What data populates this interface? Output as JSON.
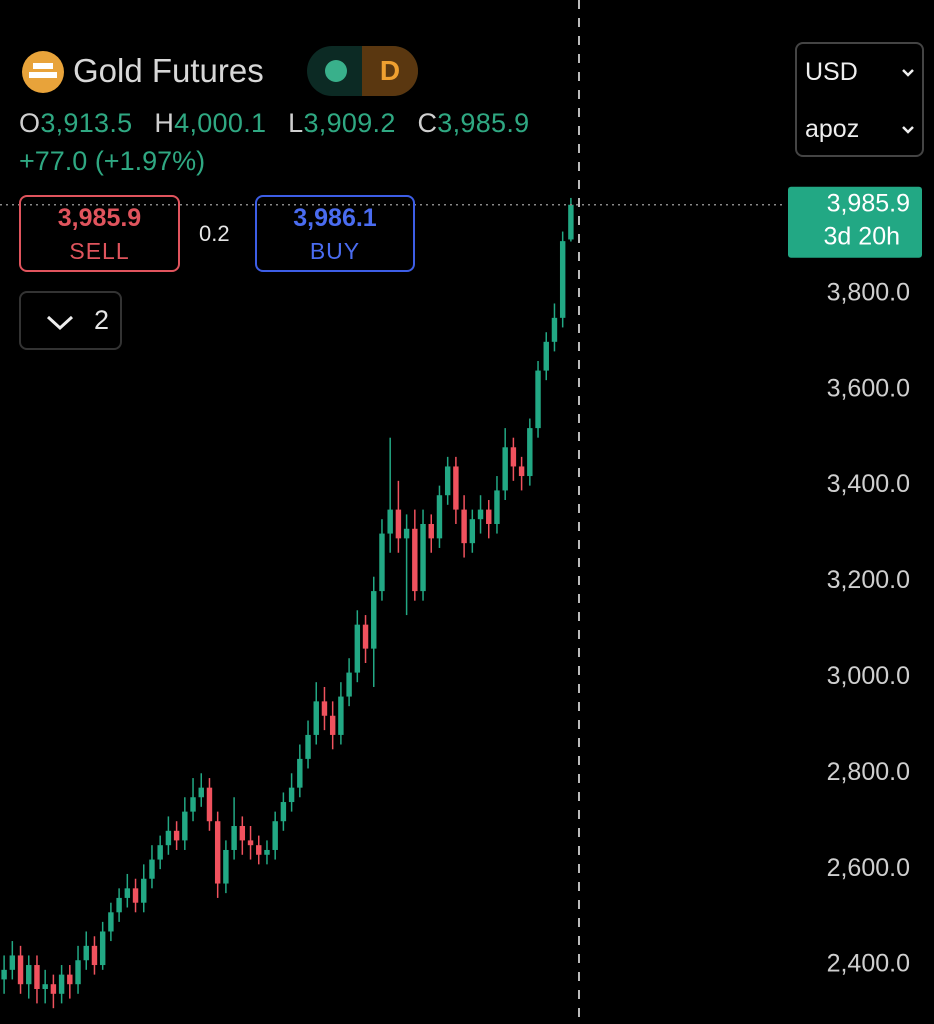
{
  "header": {
    "title": "Gold Futures",
    "interval": "D",
    "ohlc": [
      {
        "key": "O",
        "value": "3,913.5"
      },
      {
        "key": "H",
        "value": "4,000.1"
      },
      {
        "key": "L",
        "value": "3,909.2"
      },
      {
        "key": "C",
        "value": "3,985.9"
      }
    ],
    "change": "+77.0 (+1.97%)"
  },
  "trade": {
    "sell_price": "3,985.9",
    "sell_label": "SELL",
    "spread": "0.2",
    "buy_price": "3,986.1",
    "buy_label": "BUY",
    "quantity": "2"
  },
  "selectors": [
    "USD",
    "apoz"
  ],
  "chart_data": {
    "type": "candlestick",
    "open": [
      2370,
      2390,
      2420,
      2360,
      2400,
      2350,
      2360,
      2340,
      2380,
      2360,
      2410,
      2440,
      2400,
      2470,
      2510,
      2540,
      2560,
      2530,
      2580,
      2620,
      2650,
      2680,
      2660,
      2720,
      2750,
      2770,
      2700,
      2570,
      2640,
      2690,
      2660,
      2650,
      2630,
      2640,
      2700,
      2740,
      2770,
      2830,
      2880,
      2950,
      2920,
      2880,
      2960,
      3010,
      3110,
      3060,
      3180,
      3300,
      3350,
      3290,
      3310,
      3180,
      3320,
      3290,
      3380,
      3440,
      3350,
      3280,
      3330,
      3350,
      3320,
      3390,
      3480,
      3440,
      3420,
      3520,
      3640,
      3700,
      3750,
      3913.5
    ],
    "high": [
      2420,
      2450,
      2440,
      2420,
      2420,
      2390,
      2380,
      2400,
      2400,
      2440,
      2470,
      2460,
      2490,
      2530,
      2560,
      2590,
      2580,
      2610,
      2650,
      2670,
      2710,
      2700,
      2750,
      2790,
      2800,
      2790,
      2720,
      2660,
      2750,
      2710,
      2690,
      2670,
      2660,
      2720,
      2760,
      2800,
      2860,
      2910,
      2990,
      2980,
      2950,
      2990,
      3040,
      3140,
      3130,
      3210,
      3330,
      3500,
      3410,
      3340,
      3350,
      3350,
      3340,
      3400,
      3460,
      3460,
      3380,
      3350,
      3380,
      3370,
      3420,
      3520,
      3500,
      3460,
      3540,
      3660,
      3720,
      3780,
      3930,
      4000.1
    ],
    "low": [
      2340,
      2370,
      2340,
      2330,
      2320,
      2320,
      2310,
      2320,
      2330,
      2340,
      2390,
      2380,
      2390,
      2450,
      2490,
      2520,
      2510,
      2510,
      2560,
      2600,
      2630,
      2640,
      2640,
      2700,
      2730,
      2680,
      2540,
      2550,
      2620,
      2630,
      2620,
      2610,
      2610,
      2620,
      2680,
      2720,
      2750,
      2810,
      2860,
      2890,
      2850,
      2860,
      2940,
      2990,
      3030,
      2980,
      3160,
      3260,
      3260,
      3130,
      3160,
      3160,
      3260,
      3270,
      3360,
      3320,
      3250,
      3260,
      3300,
      3290,
      3300,
      3370,
      3410,
      3390,
      3400,
      3500,
      3620,
      3680,
      3730,
      3909.2
    ],
    "close": [
      2390,
      2420,
      2360,
      2400,
      2350,
      2360,
      2340,
      2380,
      2360,
      2410,
      2440,
      2400,
      2470,
      2510,
      2540,
      2560,
      2530,
      2580,
      2620,
      2650,
      2680,
      2660,
      2720,
      2750,
      2770,
      2700,
      2570,
      2640,
      2690,
      2660,
      2650,
      2630,
      2640,
      2700,
      2740,
      2770,
      2830,
      2880,
      2950,
      2920,
      2880,
      2960,
      3010,
      3110,
      3060,
      3180,
      3300,
      3350,
      3290,
      3310,
      3180,
      3320,
      3290,
      3380,
      3440,
      3350,
      3280,
      3330,
      3350,
      3320,
      3390,
      3480,
      3440,
      3420,
      3520,
      3640,
      3700,
      3750,
      3910,
      3985.9
    ],
    "up_color": "#22a884",
    "down_color": "#f0525e",
    "ylim": [
      2277,
      4413
    ],
    "yticks": [
      {
        "value": 2400,
        "label": "2,400.0"
      },
      {
        "value": 2600,
        "label": "2,600.0"
      },
      {
        "value": 2800,
        "label": "2,800.0"
      },
      {
        "value": 3000,
        "label": "3,000.0"
      },
      {
        "value": 3200,
        "label": "3,200.0"
      },
      {
        "value": 3400,
        "label": "3,400.0"
      },
      {
        "value": 3600,
        "label": "3,600.0"
      },
      {
        "value": 3800,
        "label": "3,800.0"
      }
    ],
    "last_price": {
      "value": 3985.9,
      "label": "3,985.9"
    },
    "countdown": "3d 20h"
  }
}
